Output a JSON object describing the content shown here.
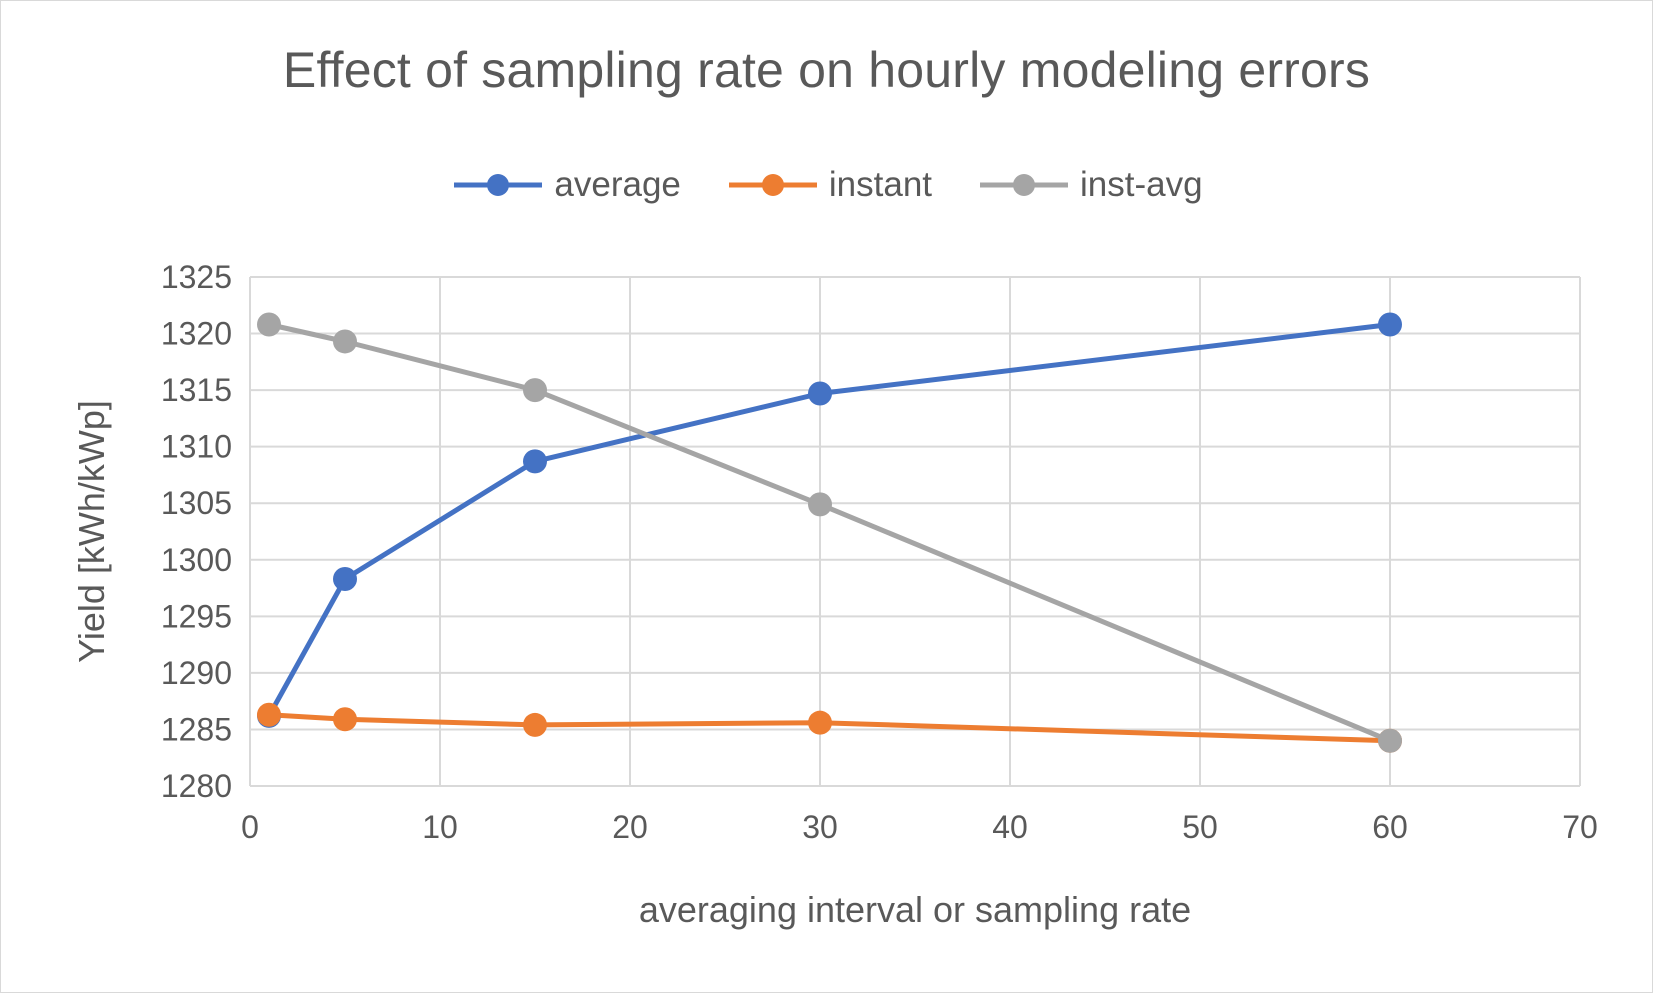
{
  "chart_data": {
    "type": "line",
    "title": "Effect of sampling rate on hourly modeling errors",
    "xlabel": "averaging interval or sampling rate",
    "ylabel": "Yield [kWh/kWp]",
    "x": [
      1,
      5,
      15,
      30,
      60
    ],
    "xlim": [
      0,
      70
    ],
    "ylim": [
      1280,
      1325
    ],
    "xticks": [
      "0",
      "10",
      "20",
      "30",
      "40",
      "50",
      "60",
      "70"
    ],
    "yticks": [
      "1280",
      "1285",
      "1290",
      "1295",
      "1300",
      "1305",
      "1310",
      "1315",
      "1320",
      "1325"
    ],
    "grid": true,
    "legend_position": "top",
    "series": [
      {
        "name": "average",
        "color": "#4472c4",
        "values": [
          1286.2,
          1298.3,
          1308.7,
          1314.7,
          1320.8
        ]
      },
      {
        "name": "instant",
        "color": "#ed7d31",
        "values": [
          1286.3,
          1285.9,
          1285.4,
          1285.6,
          1284.0
        ]
      },
      {
        "name": "inst-avg",
        "color": "#a5a5a5",
        "values": [
          1320.8,
          1319.3,
          1315.0,
          1304.9,
          1284.0
        ]
      }
    ]
  }
}
